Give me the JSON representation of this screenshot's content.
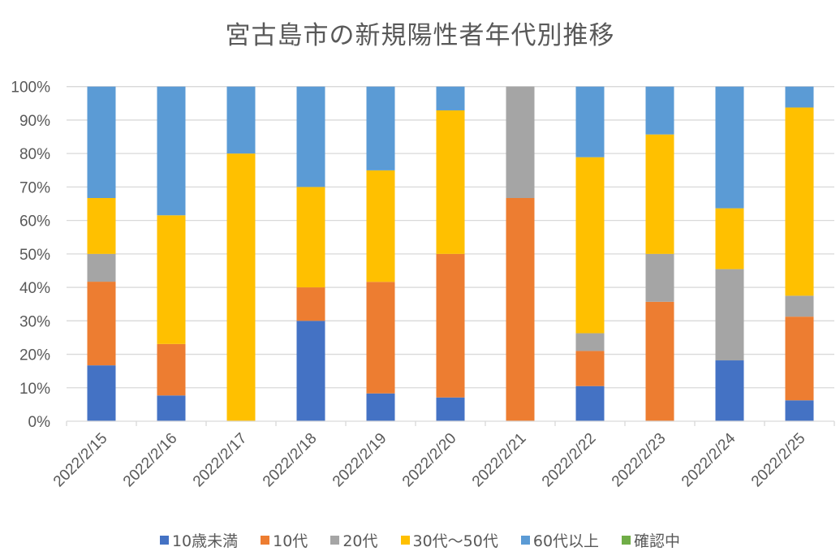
{
  "chart_data": {
    "type": "bar",
    "stacked": "percent",
    "title": "宮古島市の新規陽性者年代別推移",
    "xlabel": "",
    "ylabel": "",
    "ylim": [
      0,
      100
    ],
    "yticks": [
      "0%",
      "10%",
      "20%",
      "30%",
      "40%",
      "50%",
      "60%",
      "70%",
      "80%",
      "90%",
      "100%"
    ],
    "grid": true,
    "legend_position": "bottom",
    "categories": [
      "2022/2/15",
      "2022/2/16",
      "2022/2/17",
      "2022/2/18",
      "2022/2/19",
      "2022/2/20",
      "2022/2/21",
      "2022/2/22",
      "2022/2/23",
      "2022/2/24",
      "2022/2/25"
    ],
    "series": [
      {
        "name": "10歳未満",
        "color": "#4472C4",
        "values": [
          16.7,
          7.7,
          0,
          30,
          8.3,
          7.1,
          0,
          10.5,
          0,
          18.2,
          6.25
        ]
      },
      {
        "name": "10代",
        "color": "#ED7D31",
        "values": [
          25,
          15.4,
          0,
          10,
          33.3,
          42.9,
          66.7,
          10.5,
          35.7,
          0,
          25
        ]
      },
      {
        "name": "20代",
        "color": "#A5A5A5",
        "values": [
          8.3,
          0,
          0,
          0,
          0,
          0,
          33.3,
          5.3,
          14.3,
          27.3,
          6.25
        ]
      },
      {
        "name": "30代～50代",
        "color": "#FFC000",
        "values": [
          16.7,
          38.5,
          80,
          30,
          33.3,
          42.9,
          0,
          52.6,
          35.7,
          18.2,
          56.25
        ]
      },
      {
        "name": "60代以上",
        "color": "#5B9BD5",
        "values": [
          33.3,
          38.5,
          20,
          30,
          25,
          7.1,
          0,
          21.1,
          14.3,
          36.4,
          6.25
        ]
      },
      {
        "name": "確認中",
        "color": "#70AD47",
        "values": [
          0,
          0,
          0,
          0,
          0,
          0,
          0,
          0,
          0,
          0,
          0
        ]
      }
    ]
  }
}
